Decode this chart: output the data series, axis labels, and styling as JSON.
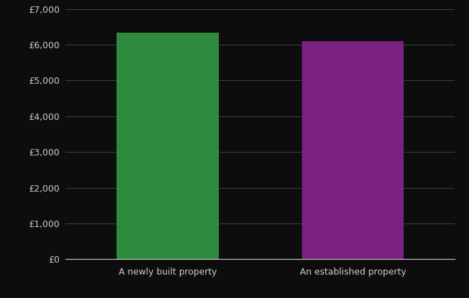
{
  "categories": [
    "A newly built property",
    "An established property"
  ],
  "values": [
    6340,
    6100
  ],
  "bar_colors": [
    "#2e8b3e",
    "#7b2182"
  ],
  "background_color": "#0d0d0d",
  "text_color": "#cccccc",
  "grid_color": "#4a4a4a",
  "ylim": [
    0,
    7000
  ],
  "ytick_step": 1000,
  "bar_width": 0.55,
  "xlabel": "",
  "ylabel": ""
}
